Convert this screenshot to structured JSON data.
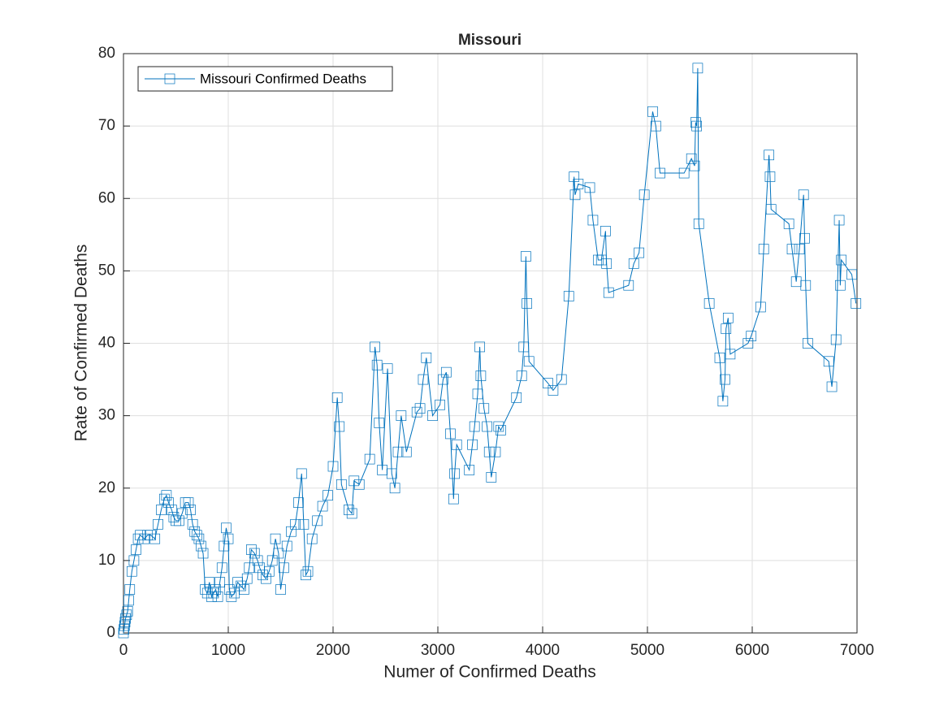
{
  "chart_data": {
    "type": "line",
    "title": "Missouri",
    "x_label": "Numer of Confirmed Deaths",
    "y_label": "Rate of Confirmed Deaths",
    "x": [
      0,
      5,
      10,
      15,
      20,
      30,
      40,
      50,
      60,
      80,
      100,
      120,
      140,
      160,
      200,
      230,
      260,
      300,
      330,
      360,
      390,
      410,
      430,
      460,
      480,
      500,
      530,
      560,
      590,
      620,
      640,
      660,
      680,
      700,
      720,
      740,
      760,
      780,
      800,
      820,
      840,
      860,
      880,
      900,
      920,
      940,
      960,
      980,
      1000,
      1010,
      1030,
      1060,
      1090,
      1120,
      1150,
      1180,
      1200,
      1220,
      1250,
      1280,
      1300,
      1330,
      1360,
      1390,
      1420,
      1450,
      1480,
      1500,
      1530,
      1560,
      1600,
      1640,
      1670,
      1700,
      1720,
      1740,
      1760,
      1800,
      1850,
      1900,
      1950,
      2000,
      2040,
      2060,
      2080,
      2150,
      2180,
      2200,
      2250,
      2350,
      2400,
      2420,
      2440,
      2470,
      2520,
      2560,
      2590,
      2620,
      2650,
      2700,
      2800,
      2830,
      2860,
      2890,
      2950,
      3020,
      3050,
      3080,
      3120,
      3150,
      3160,
      3180,
      3300,
      3330,
      3350,
      3380,
      3400,
      3410,
      3440,
      3470,
      3490,
      3510,
      3550,
      3580,
      3600,
      3750,
      3800,
      3820,
      3840,
      3850,
      3870,
      4050,
      4100,
      4180,
      4250,
      4300,
      4310,
      4340,
      4450,
      4480,
      4530,
      4560,
      4600,
      4610,
      4630,
      4820,
      4870,
      4920,
      4970,
      5050,
      5080,
      5120,
      5350,
      5420,
      5450,
      5460,
      5470,
      5480,
      5490,
      5590,
      5690,
      5720,
      5740,
      5750,
      5770,
      5790,
      5960,
      5990,
      6080,
      6110,
      6160,
      6170,
      6180,
      6350,
      6380,
      6420,
      6450,
      6490,
      6500,
      6510,
      6530,
      6730,
      6760,
      6800,
      6830,
      6840,
      6850,
      6950,
      6990
    ],
    "series": [
      {
        "name": "Missouri Confirmed Deaths",
        "color": "#0072bd",
        "values": [
          0,
          0.5,
          1,
          1.5,
          2,
          2.5,
          3,
          4.5,
          6,
          8.5,
          10,
          11.5,
          13,
          13.5,
          13,
          13.5,
          13.5,
          13,
          15,
          17,
          18.5,
          19,
          18,
          17,
          16,
          15.5,
          15.5,
          16.5,
          18,
          18,
          17,
          15,
          14,
          13.5,
          13,
          12,
          11,
          6,
          5.5,
          7,
          5,
          5.5,
          6,
          5,
          7,
          9,
          12,
          14.5,
          13,
          6,
          5,
          5.5,
          7,
          6.5,
          6,
          7.5,
          9,
          11.5,
          11,
          10,
          9,
          8,
          7.5,
          8.5,
          10,
          13,
          11,
          6,
          9,
          12,
          14,
          15,
          18,
          22,
          15,
          8,
          8.5,
          13,
          15.5,
          17.5,
          19,
          23,
          32.5,
          28.5,
          20.5,
          17,
          16.5,
          21,
          20.5,
          24,
          39.5,
          37,
          29,
          22.5,
          36.5,
          22,
          20,
          25,
          30,
          25,
          30.5,
          31,
          35,
          38,
          30,
          31.5,
          35,
          36,
          27.5,
          18.5,
          22,
          26,
          22.5,
          26,
          28.5,
          33,
          39.5,
          35.5,
          31,
          28.5,
          25,
          21.5,
          25,
          28.5,
          28,
          32.5,
          35.5,
          39.5,
          52,
          45.5,
          37.5,
          34.5,
          33.5,
          35,
          46.5,
          63,
          60.5,
          62,
          61.5,
          57,
          51.5,
          51.5,
          55.5,
          51,
          47,
          48,
          51,
          52.5,
          60.5,
          72,
          70,
          63.5,
          63.5,
          65.5,
          64.5,
          70.5,
          70,
          78,
          56.5,
          45.5,
          38,
          32,
          35,
          42,
          43.5,
          38.5,
          40,
          41,
          45,
          53,
          66,
          63,
          58.5,
          56.5,
          53,
          48.5,
          53,
          60.5,
          54.5,
          48,
          40,
          37.5,
          34,
          40.5,
          57,
          48,
          51.5,
          49.5,
          45.5
        ]
      }
    ],
    "xlim": [
      0,
      7000
    ],
    "ylim": [
      0,
      80
    ],
    "xticks": [
      0,
      1000,
      2000,
      3000,
      4000,
      5000,
      6000,
      7000
    ],
    "yticks": [
      0,
      10,
      20,
      30,
      40,
      50,
      60,
      70,
      80
    ],
    "grid": true,
    "legend": "northwest"
  }
}
